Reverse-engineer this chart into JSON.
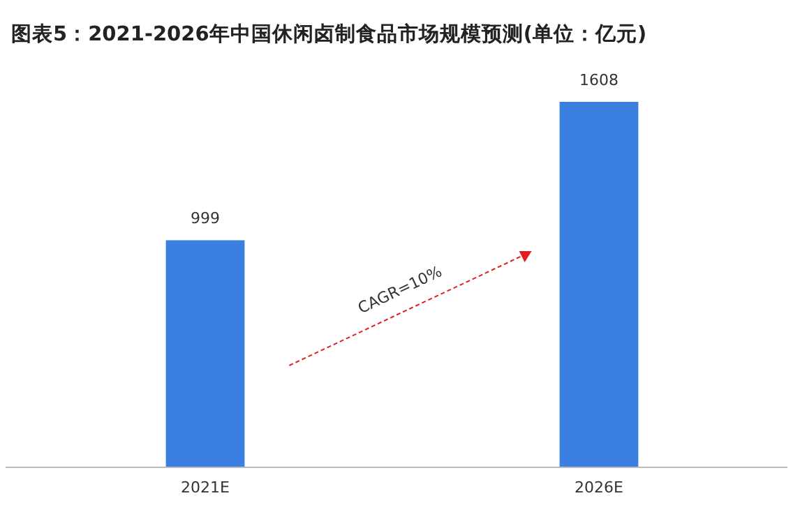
{
  "chart_data": {
    "type": "bar",
    "title": "图表5：2021-2026年中国休闲卤制食品市场规模预测(单位：亿元)",
    "categories": [
      "2021E",
      "2026E"
    ],
    "values": [
      999,
      1608
    ],
    "color": "#3b7fe0",
    "data_labels": true,
    "annotations": [
      "CAGR=10%"
    ]
  }
}
